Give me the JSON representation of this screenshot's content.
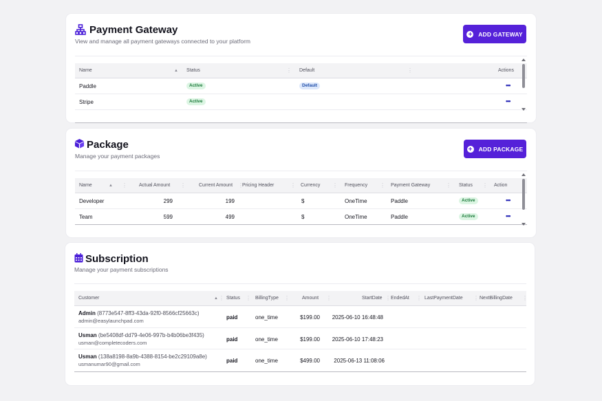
{
  "gateway": {
    "title": "Payment Gateway",
    "subtitle": "View and manage all payment gateways connected to your platform",
    "add_button": "ADD GATEWAY",
    "columns": [
      "Name",
      "Status",
      "Default",
      "Actions"
    ],
    "rows": [
      {
        "name": "Paddle",
        "status": "Active",
        "default": "Default",
        "actions": "•••"
      },
      {
        "name": "Stripe",
        "status": "Active",
        "default": "",
        "actions": "•••"
      }
    ]
  },
  "package": {
    "title": "Package",
    "subtitle": "Manage your payment packages",
    "add_button": "ADD PACKAGE",
    "columns": [
      "Name",
      "Actual Amount",
      "Current Amount",
      "Pricing Header",
      "Currency",
      "Frequency",
      "Payment Gateway",
      "Status",
      "Action"
    ],
    "rows": [
      {
        "name": "Developer",
        "actual": "299",
        "current": "199",
        "pricing_header": "",
        "currency": "$",
        "frequency": "OneTime",
        "gateway": "Paddle",
        "status": "Active",
        "actions": "•••"
      },
      {
        "name": "Team",
        "actual": "599",
        "current": "499",
        "pricing_header": "",
        "currency": "$",
        "frequency": "OneTime",
        "gateway": "Paddle",
        "status": "Active",
        "actions": "•••"
      }
    ]
  },
  "subscription": {
    "title": "Subscription",
    "subtitle": "Manage your payment subscriptions",
    "columns": [
      "Customer",
      "Status",
      "BillingType",
      "Amount",
      "StartDate",
      "EndedAt",
      "LastPaymentDate",
      "NextBillingDate"
    ],
    "rows": [
      {
        "name": "Admin",
        "id": "(8773e547-8ff3-43da-92f0-8566cf25663c)",
        "email": "admin@easylaunchpad.com",
        "status": "paid",
        "billing_type": "one_time",
        "amount": "$199.00",
        "start_date": "2025-06-10 16:48:48"
      },
      {
        "name": "Usman",
        "id": "(be5408df-dd79-4e06-997b-b4b06be3f435)",
        "email": "usman@completecoders.com",
        "status": "paid",
        "billing_type": "one_time",
        "amount": "$199.00",
        "start_date": "2025-06-10 17:48:23"
      },
      {
        "name": "Usman",
        "id": "(138a8198-8a9b-4388-8154-be2c29109a8e)",
        "email": "usmanumar90@gmail.com",
        "status": "paid",
        "billing_type": "one_time",
        "amount": "$499.00",
        "start_date": "2025-06-13 11:08:06"
      }
    ]
  },
  "icons": {
    "gateway": "network-icon",
    "package": "box-icon",
    "subscription": "calendar-icon",
    "add": "plus-circle-icon",
    "more": "more-dots-icon",
    "sort": "sort-up-icon",
    "separator": "column-separator-icon"
  },
  "colors": {
    "accent": "#5521d9",
    "active_badge_bg": "#dcf5e3",
    "default_badge_bg": "#dde8fb"
  }
}
